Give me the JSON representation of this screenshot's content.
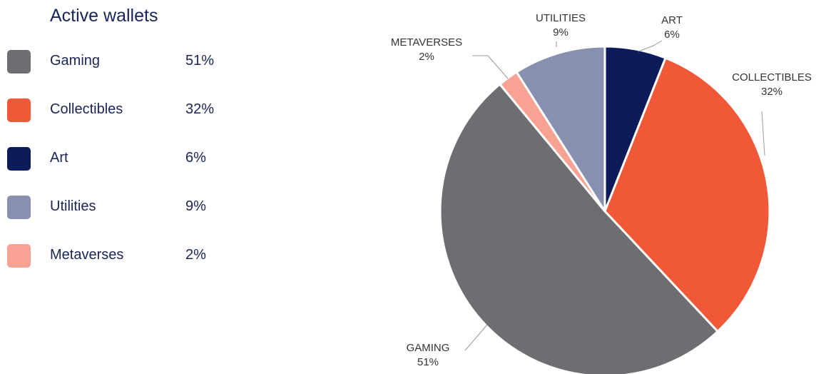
{
  "title": "Active wallets",
  "colors": {
    "gaming": "#6d6e72",
    "collectibles": "#f15838",
    "art": "#0c1c5b",
    "utilities": "#8790ae",
    "metaverses": "#f7a292"
  },
  "legend": [
    {
      "key": "gaming",
      "label": "Gaming",
      "value": "51%"
    },
    {
      "key": "collectibles",
      "label": "Collectibles",
      "value": "32%"
    },
    {
      "key": "art",
      "label": "Art",
      "value": "6%"
    },
    {
      "key": "utilities",
      "label": "Utilities",
      "value": "9%"
    },
    {
      "key": "metaverses",
      "label": "Metaverses",
      "value": "2%"
    }
  ],
  "chart_data": {
    "type": "pie",
    "title": "Active wallets",
    "start": "12 o'clock, clockwise",
    "slices": [
      {
        "key": "art",
        "label": "ART",
        "value": 6,
        "value_label": "6%"
      },
      {
        "key": "collectibles",
        "label": "COLLECTIBLES",
        "value": 32,
        "value_label": "32%"
      },
      {
        "key": "gaming",
        "label": "GAMING",
        "value": 51,
        "value_label": "51%"
      },
      {
        "key": "metaverses",
        "label": "METAVERSES",
        "value": 2,
        "value_label": "2%"
      },
      {
        "key": "utilities",
        "label": "UTILITIES",
        "value": 9,
        "value_label": "9%"
      }
    ]
  }
}
